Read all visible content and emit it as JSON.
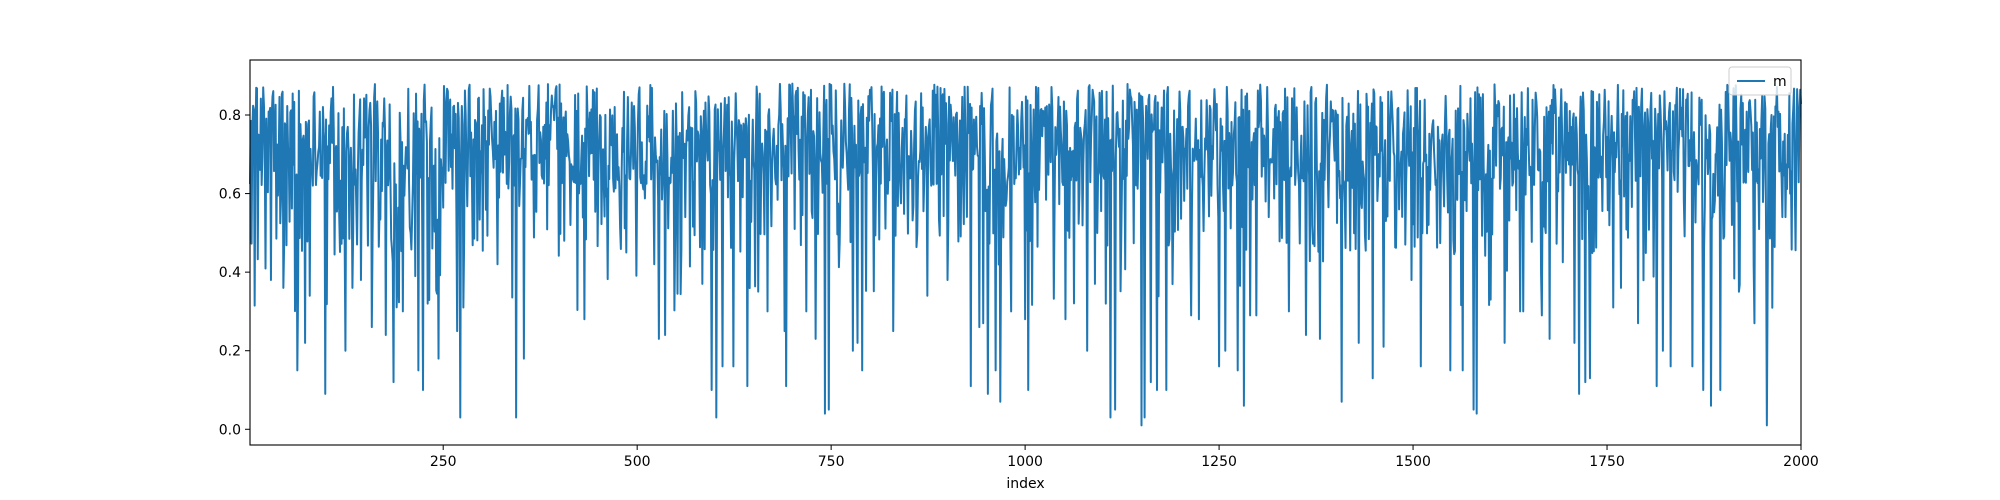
{
  "chart_data": {
    "type": "line",
    "title": "",
    "xlabel": "index",
    "ylabel": "",
    "xlim": [
      1,
      2000
    ],
    "ylim": [
      -0.04,
      0.94
    ],
    "xticks": [
      250,
      500,
      750,
      1000,
      1250,
      1500,
      1750,
      2000
    ],
    "xtick_labels": [
      "250",
      "500",
      "750",
      "1000",
      "1250",
      "1500",
      "1750",
      "2000"
    ],
    "yticks": [
      0.0,
      0.2,
      0.4,
      0.6,
      0.8
    ],
    "ytick_labels": [
      "0.0",
      "0.2",
      "0.4",
      "0.6",
      "0.8"
    ],
    "grid": false,
    "legend": {
      "placement": "top-right",
      "entries": [
        "m"
      ]
    },
    "series": [
      {
        "name": "m",
        "color": "#1f77b4",
        "generation": {
          "count": 2000,
          "seed": 12345,
          "typical_range": [
            0.5,
            0.88
          ],
          "dip_points": [
            [
              28,
              0.38
            ],
            [
              44,
              0.36
            ],
            [
              62,
              0.15
            ],
            [
              72,
              0.22
            ],
            [
              78,
              0.34
            ],
            [
              98,
              0.09
            ],
            [
              124,
              0.2
            ],
            [
              133,
              0.36
            ],
            [
              144,
              0.38
            ],
            [
              158,
              0.26
            ],
            [
              176,
              0.24
            ],
            [
              186,
              0.12
            ],
            [
              198,
              0.3
            ],
            [
              218,
              0.15
            ],
            [
              224,
              0.1
            ],
            [
              230,
              0.32
            ],
            [
              244,
              0.18
            ],
            [
              268,
              0.25
            ],
            [
              272,
              0.03
            ],
            [
              320,
              0.42
            ],
            [
              344,
              0.03
            ],
            [
              354,
              0.18
            ],
            [
              414,
              0.52
            ],
            [
              432,
              0.28
            ],
            [
              486,
              0.45
            ],
            [
              522,
              0.42
            ],
            [
              528,
              0.23
            ],
            [
              536,
              0.24
            ],
            [
              584,
              0.37
            ],
            [
              596,
              0.1
            ],
            [
              602,
              0.03
            ],
            [
              610,
              0.16
            ],
            [
              624,
              0.16
            ],
            [
              642,
              0.11
            ],
            [
              668,
              0.3
            ],
            [
              690,
              0.25
            ],
            [
              692,
              0.11
            ],
            [
              718,
              0.3
            ],
            [
              730,
              0.23
            ],
            [
              742,
              0.04
            ],
            [
              747,
              0.05
            ],
            [
              778,
              0.2
            ],
            [
              784,
              0.22
            ],
            [
              790,
              0.15
            ],
            [
              830,
              0.25
            ],
            [
              874,
              0.34
            ],
            [
              900,
              0.38
            ],
            [
              930,
              0.11
            ],
            [
              941,
              0.26
            ],
            [
              946,
              0.27
            ],
            [
              952,
              0.09
            ],
            [
              962,
              0.15
            ],
            [
              968,
              0.07
            ],
            [
              982,
              0.3
            ],
            [
              1000,
              0.28
            ],
            [
              1004,
              0.1
            ],
            [
              1052,
              0.28
            ],
            [
              1080,
              0.2
            ],
            [
              1090,
              0.37
            ],
            [
              1104,
              0.32
            ],
            [
              1110,
              0.03
            ],
            [
              1116,
              0.05
            ],
            [
              1150,
              0.01
            ],
            [
              1154,
              0.03
            ],
            [
              1162,
              0.12
            ],
            [
              1170,
              0.1
            ],
            [
              1182,
              0.1
            ],
            [
              1214,
              0.29
            ],
            [
              1224,
              0.28
            ],
            [
              1250,
              0.16
            ],
            [
              1258,
              0.2
            ],
            [
              1274,
              0.15
            ],
            [
              1282,
              0.06
            ],
            [
              1290,
              0.29
            ],
            [
              1298,
              0.29
            ],
            [
              1340,
              0.3
            ],
            [
              1362,
              0.24
            ],
            [
              1380,
              0.23
            ],
            [
              1408,
              0.07
            ],
            [
              1430,
              0.22
            ],
            [
              1448,
              0.13
            ],
            [
              1462,
              0.21
            ],
            [
              1498,
              0.38
            ],
            [
              1510,
              0.16
            ],
            [
              1548,
              0.15
            ],
            [
              1564,
              0.15
            ],
            [
              1578,
              0.05
            ],
            [
              1582,
              0.04
            ],
            [
              1600,
              0.33
            ],
            [
              1618,
              0.22
            ],
            [
              1642,
              0.3
            ],
            [
              1666,
              0.29
            ],
            [
              1676,
              0.23
            ],
            [
              1708,
              0.22
            ],
            [
              1714,
              0.09
            ],
            [
              1722,
              0.12
            ],
            [
              1728,
              0.13
            ],
            [
              1758,
              0.31
            ],
            [
              1768,
              0.36
            ],
            [
              1790,
              0.27
            ],
            [
              1814,
              0.11
            ],
            [
              1822,
              0.2
            ],
            [
              1832,
              0.16
            ],
            [
              1860,
              0.16
            ],
            [
              1874,
              0.1
            ],
            [
              1884,
              0.06
            ],
            [
              1896,
              0.1
            ],
            [
              1920,
              0.35
            ],
            [
              1940,
              0.27
            ],
            [
              1956,
              0.01
            ],
            [
              1976,
              0.54
            ],
            [
              1992,
              0.62
            ]
          ]
        }
      }
    ]
  }
}
